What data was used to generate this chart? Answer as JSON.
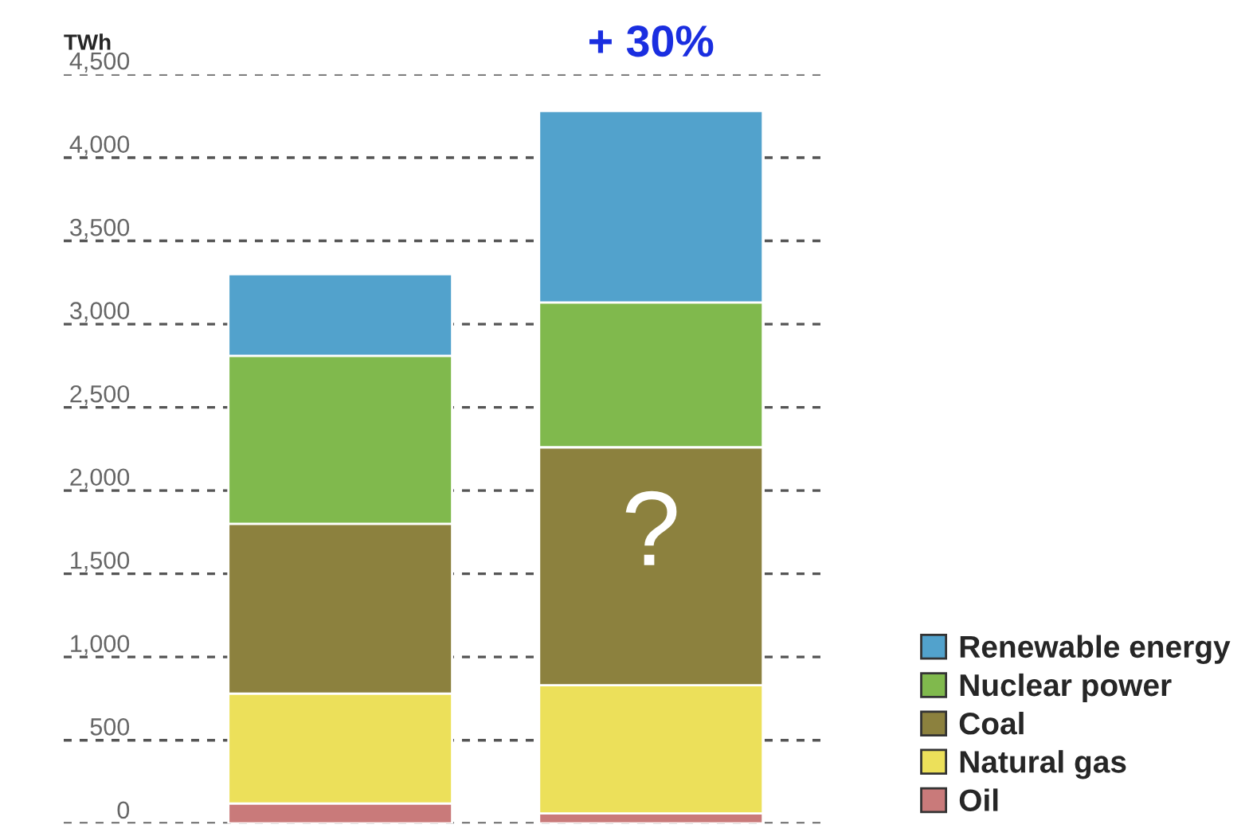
{
  "chart_data": {
    "type": "bar",
    "stacked": true,
    "ylabel": "TWh",
    "categories": [
      null,
      null
    ],
    "series": [
      {
        "name": "Oil",
        "color": "#c97a7a",
        "values": [
          120,
          60
        ]
      },
      {
        "name": "Natural gas",
        "color": "#ece05a",
        "values": [
          660,
          770
        ]
      },
      {
        "name": "Coal",
        "color": "#8c813e",
        "values": [
          1020,
          1430
        ]
      },
      {
        "name": "Nuclear power",
        "color": "#80b94d",
        "values": [
          1010,
          870
        ]
      },
      {
        "name": "Renewable energy",
        "color": "#52a2cc",
        "values": [
          490,
          1150
        ]
      }
    ],
    "ylim": [
      0,
      4500
    ],
    "yticks": [
      {
        "value": 0,
        "label": "0"
      },
      {
        "value": 500,
        "label": "500"
      },
      {
        "value": 1000,
        "label": "1,000"
      },
      {
        "value": 1500,
        "label": "1,500"
      },
      {
        "value": 2000,
        "label": "2,000"
      },
      {
        "value": 2500,
        "label": "2,500"
      },
      {
        "value": 3000,
        "label": "3,000"
      },
      {
        "value": 3500,
        "label": "3,500"
      },
      {
        "value": 4000,
        "label": "4,000"
      },
      {
        "value": 4500,
        "label": "4,500"
      }
    ],
    "grid": "y",
    "legend": "bottom right",
    "annotations": [
      "+ 30%",
      "?"
    ]
  }
}
